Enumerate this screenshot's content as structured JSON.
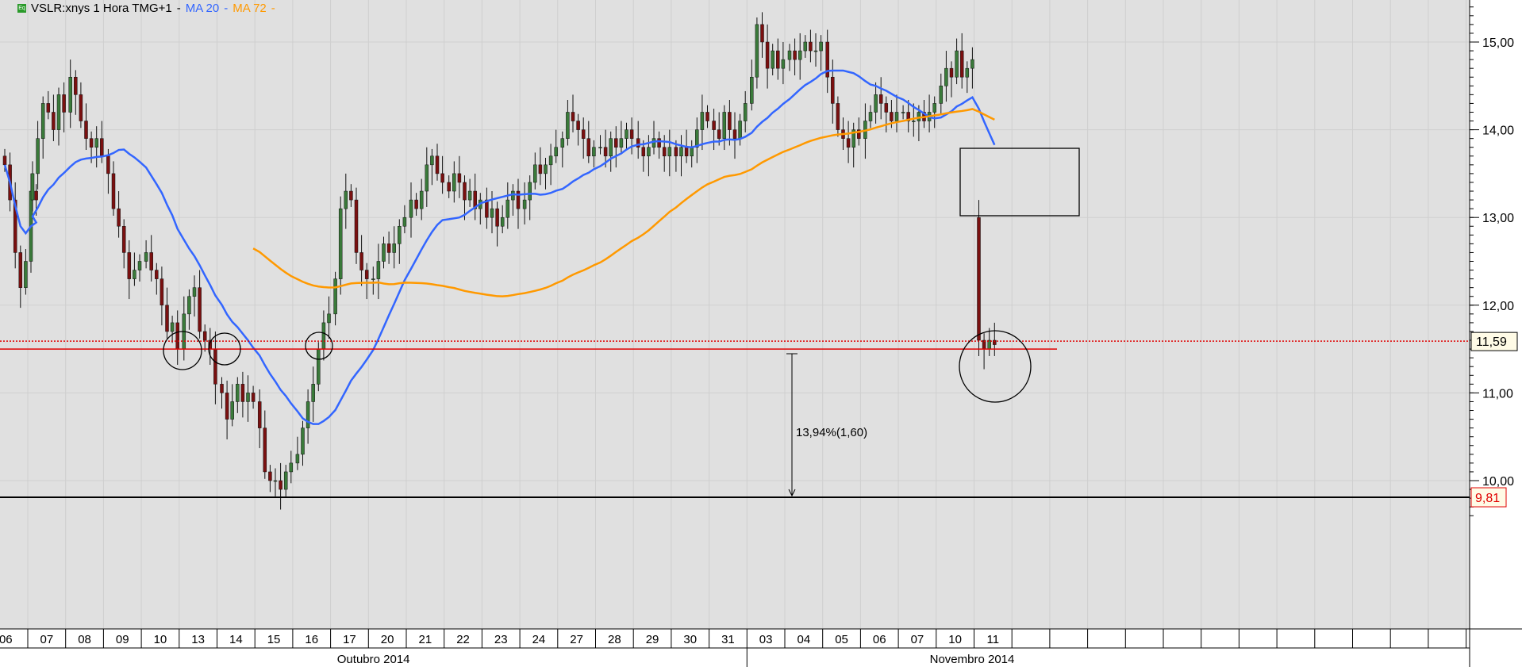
{
  "header": {
    "symbol": "VSLR:xnys 1 Hora TMG+1",
    "sep": "-",
    "ma20_label": "MA 20",
    "ma72_label": "MA 72",
    "icon": "eq-icon"
  },
  "colors": {
    "bg": "#e0e0e0",
    "up": "#3a7a3a",
    "down": "#7a1010",
    "ma20": "#3366ff",
    "ma72": "#ff9900",
    "level": "#e00000"
  },
  "chart_data": {
    "type": "candlestick",
    "title": "VSLR:xnys 1 Hora TMG+1",
    "ylim": [
      9.5,
      15.45
    ],
    "y_ticks": [
      "10,00",
      "11,00",
      "12,00",
      "13,00",
      "14,00",
      "15,00"
    ],
    "last_price_label": "11,59",
    "low_label": "9,81",
    "months": [
      "Outubro 2014",
      "Novembro 2014"
    ],
    "days": [
      {
        "label": "06",
        "closes": [
          13.6,
          13.2,
          12.6,
          12.2,
          12.5,
          13.3,
          13.2
        ]
      },
      {
        "label": "07",
        "closes": [
          13.5,
          13.9,
          14.3,
          14.2,
          14.0,
          14.4,
          14.2
        ]
      },
      {
        "label": "08",
        "closes": [
          14.6,
          14.4,
          14.1,
          13.9,
          13.8,
          13.9,
          13.7
        ]
      },
      {
        "label": "09",
        "closes": [
          13.5,
          13.1,
          12.9,
          12.6,
          12.3,
          12.4,
          12.5
        ]
      },
      {
        "label": "10",
        "closes": [
          12.6,
          12.4,
          12.3,
          12.0,
          11.7,
          11.8,
          11.5
        ]
      },
      {
        "label": "13",
        "closes": [
          11.9,
          12.1,
          12.2,
          11.7,
          11.6,
          11.5,
          11.1
        ]
      },
      {
        "label": "14",
        "closes": [
          11.0,
          10.7,
          10.9,
          11.1,
          10.9,
          11.0,
          10.9
        ]
      },
      {
        "label": "15",
        "closes": [
          10.6,
          10.1,
          10.0,
          10.0,
          9.9,
          10.1,
          10.2
        ]
      },
      {
        "label": "16",
        "closes": [
          10.3,
          10.6,
          10.9,
          11.1,
          11.5,
          11.8,
          11.9
        ]
      },
      {
        "label": "17",
        "closes": [
          12.3,
          13.1,
          13.3,
          13.2,
          12.6,
          12.4,
          12.3
        ]
      },
      {
        "label": "20",
        "closes": [
          12.3,
          12.5,
          12.7,
          12.6,
          12.7,
          12.9,
          13.0
        ]
      },
      {
        "label": "21",
        "closes": [
          13.2,
          13.1,
          13.3,
          13.6,
          13.7,
          13.5,
          13.4
        ]
      },
      {
        "label": "22",
        "closes": [
          13.3,
          13.5,
          13.4,
          13.2,
          13.3,
          13.1,
          13.2
        ]
      },
      {
        "label": "23",
        "closes": [
          13.0,
          13.1,
          12.9,
          13.0,
          13.2,
          13.3,
          13.1
        ]
      },
      {
        "label": "24",
        "closes": [
          13.2,
          13.4,
          13.6,
          13.5,
          13.6,
          13.7,
          13.8
        ]
      },
      {
        "label": "27",
        "closes": [
          13.9,
          14.2,
          14.1,
          14.0,
          13.9,
          13.7,
          13.8
        ]
      },
      {
        "label": "28",
        "closes": [
          13.8,
          13.7,
          13.9,
          13.8,
          13.9,
          14.0,
          13.9
        ]
      },
      {
        "label": "29",
        "closes": [
          13.8,
          13.7,
          13.8,
          13.9,
          13.8,
          13.7,
          13.8
        ]
      },
      {
        "label": "30",
        "closes": [
          13.7,
          13.8,
          13.7,
          13.8,
          14.0,
          14.2,
          14.1
        ]
      },
      {
        "label": "31",
        "closes": [
          14.0,
          13.9,
          14.2,
          14.0,
          13.9,
          14.1,
          14.3
        ]
      },
      {
        "label": "03",
        "closes": [
          14.6,
          15.2,
          15.0,
          14.7,
          14.9,
          14.7,
          14.8
        ]
      },
      {
        "label": "04",
        "closes": [
          14.9,
          14.8,
          14.9,
          15.0,
          14.9,
          14.9,
          15.0
        ]
      },
      {
        "label": "05",
        "closes": [
          14.6,
          14.3,
          14.0,
          13.9,
          13.8,
          14.0,
          13.9
        ]
      },
      {
        "label": "06",
        "closes": [
          14.1,
          14.2,
          14.4,
          14.3,
          14.2,
          14.1,
          14.2
        ]
      },
      {
        "label": "07",
        "closes": [
          14.2,
          14.1,
          14.1,
          14.2,
          14.1,
          14.2,
          14.3
        ]
      },
      {
        "label": "10",
        "closes": [
          14.5,
          14.7,
          14.6,
          14.9,
          14.6,
          14.7,
          14.8
        ]
      },
      {
        "label": "11",
        "open": 13.0,
        "closes": [
          11.6,
          11.5,
          11.6,
          11.55
        ]
      }
    ],
    "levels": {
      "support": 11.5,
      "last": 11.59,
      "low": 9.81
    },
    "annotation": "13,94%(1,60)"
  }
}
